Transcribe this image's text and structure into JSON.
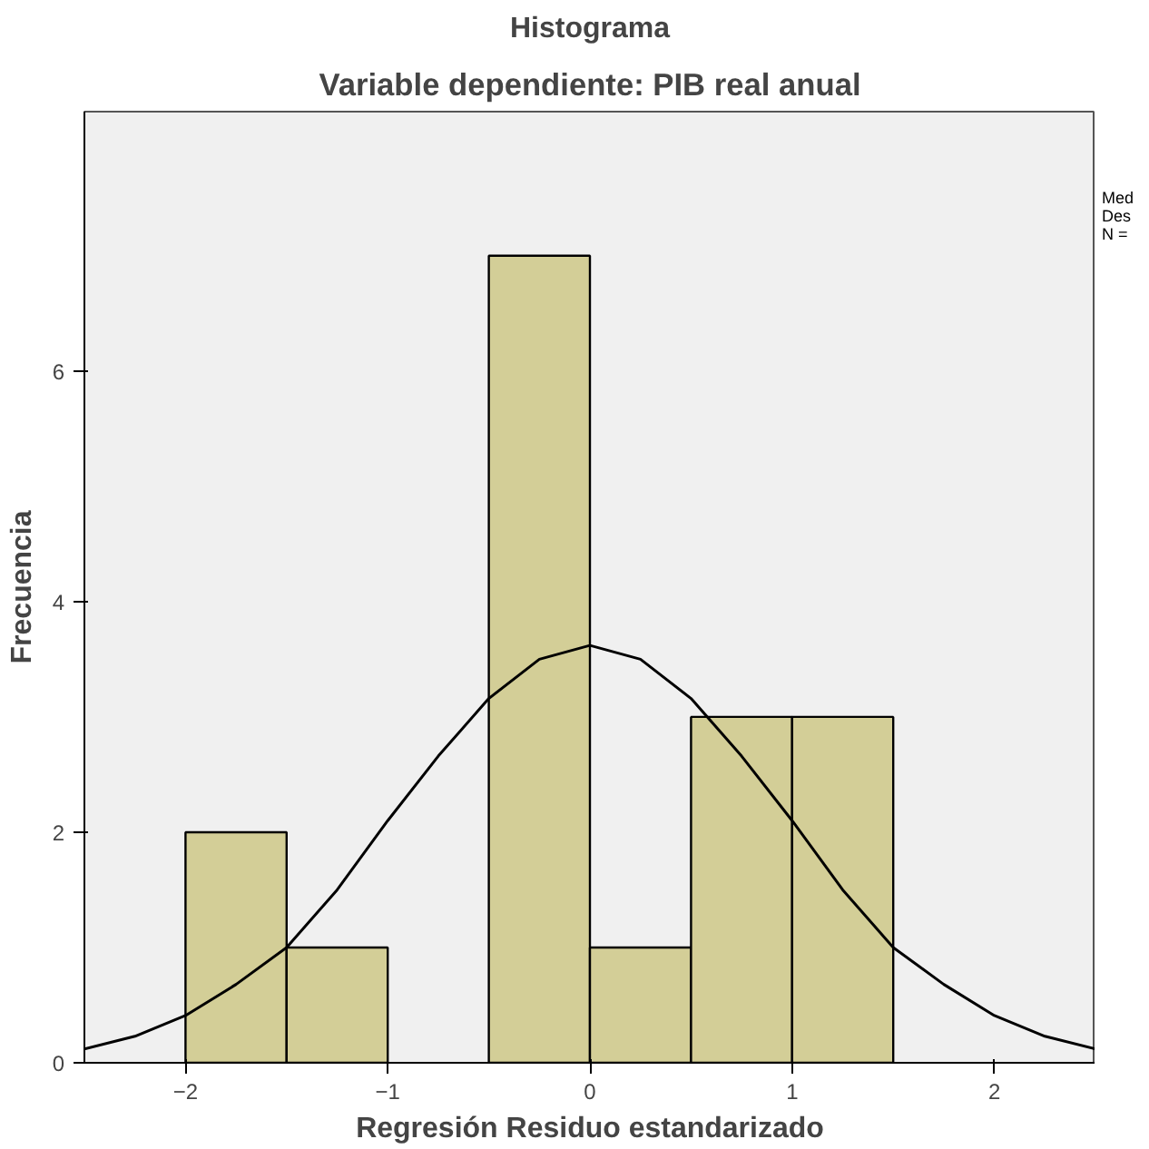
{
  "chart_data": {
    "type": "histogram",
    "title": "Histograma",
    "subtitle": "Variable dependiente: PIB real anual",
    "xlabel": "Regresión Residuo estandarizado",
    "ylabel": "Frecuencia",
    "bins": [
      -2,
      -1.5,
      -1,
      -0.5,
      0,
      0.5,
      1,
      1.5
    ],
    "values": [
      2,
      1,
      0,
      7,
      1,
      3,
      3
    ],
    "color": "#d3ce97",
    "series": [
      {
        "type": "line",
        "color": "#000000",
        "x": [
          -2.5,
          -2.25,
          -2,
          -1.75,
          -1.5,
          -1.25,
          -1,
          -0.75,
          -0.5,
          -0.25,
          0,
          0.25,
          0.5,
          0.75,
          1,
          1.25,
          1.5,
          1.75,
          2,
          2.25,
          2.5
        ],
        "values": [
          0.12,
          0.23,
          0.41,
          0.68,
          1.0,
          1.5,
          2.1,
          2.66,
          3.16,
          3.5,
          3.62,
          3.5,
          3.16,
          2.66,
          2.1,
          1.5,
          1.0,
          0.68,
          0.41,
          0.23,
          0.12
        ]
      }
    ],
    "xlim": [
      -2.5,
      2.5
    ],
    "xticks": [
      -2,
      -1,
      0,
      1,
      2
    ],
    "ylim": [
      0,
      8.25
    ],
    "yticks": [
      0,
      2,
      4,
      6
    ],
    "grid": false,
    "annotations": [
      "Med",
      "Des",
      "N ="
    ]
  }
}
